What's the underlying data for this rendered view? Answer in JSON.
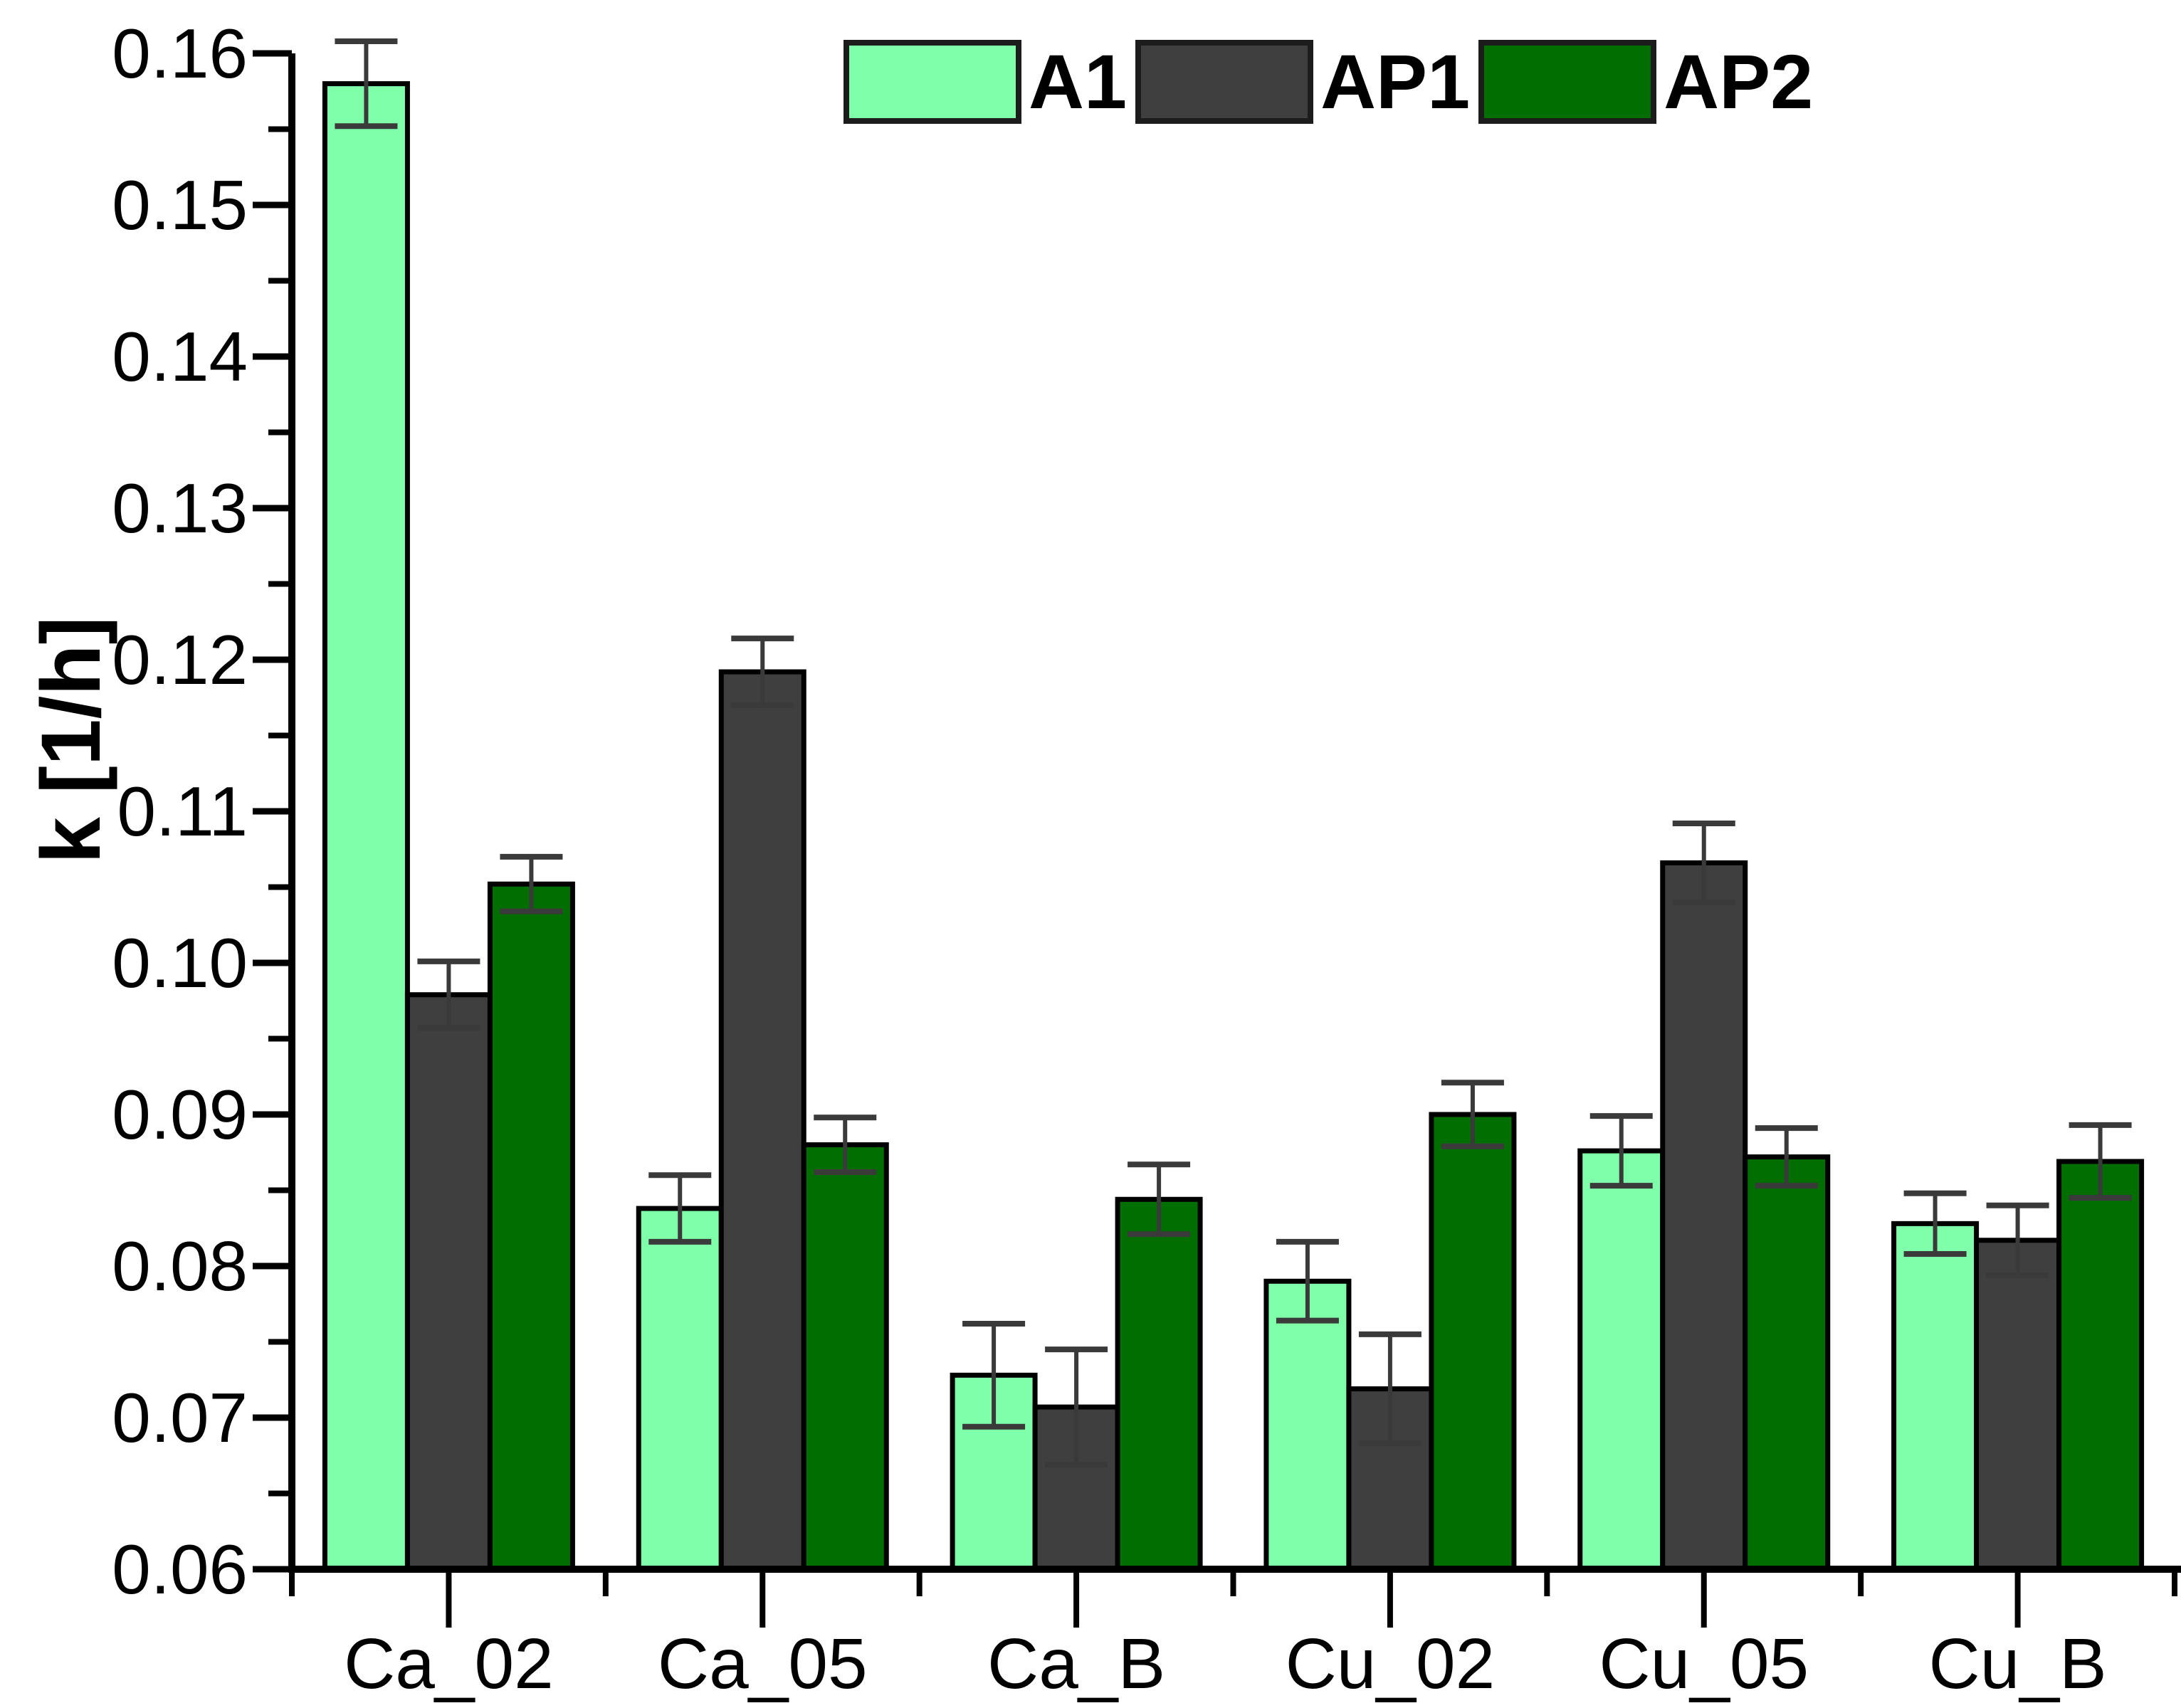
{
  "chart_data": {
    "type": "bar",
    "title": "",
    "ylabel": "k [1/h]",
    "xlabel": "",
    "ylim": [
      0.06,
      0.16
    ],
    "ytick_step": 0.01,
    "ytick_minor_step": 0.005,
    "ytick_labels": [
      "0.06",
      "0.07",
      "0.08",
      "0.09",
      "0.10",
      "0.11",
      "0.12",
      "0.13",
      "0.14",
      "0.15",
      "0.16"
    ],
    "grid": false,
    "legend_position": "top-center",
    "categories": [
      "Ca_02",
      "Ca_05",
      "Ca_B",
      "Cu_02",
      "Cu_05",
      "Cu_B"
    ],
    "series": [
      {
        "name": "A1",
        "color": "#80FFAA",
        "values": [
          0.158,
          0.0838,
          0.0728,
          0.079,
          0.0876,
          0.0828
        ],
        "errors": [
          0.0028,
          0.0022,
          0.0034,
          0.0026,
          0.0023,
          0.002
        ]
      },
      {
        "name": "AP1",
        "color": "#3F3F3F",
        "values": [
          0.0979,
          0.1192,
          0.0707,
          0.0719,
          0.1066,
          0.0817
        ],
        "errors": [
          0.0022,
          0.0022,
          0.0038,
          0.0036,
          0.0026,
          0.0023
        ]
      },
      {
        "name": "AP2",
        "color": "#006E00",
        "values": [
          0.1052,
          0.088,
          0.0844,
          0.09,
          0.0872,
          0.0869
        ],
        "errors": [
          0.0018,
          0.0018,
          0.0023,
          0.0021,
          0.0019,
          0.0024
        ]
      }
    ],
    "bar_edge_color": "#000000",
    "error_bar_color": "#3a3a3a",
    "axis_color": "#000000",
    "text_color": "#000000",
    "background": "#FFFFFF"
  }
}
